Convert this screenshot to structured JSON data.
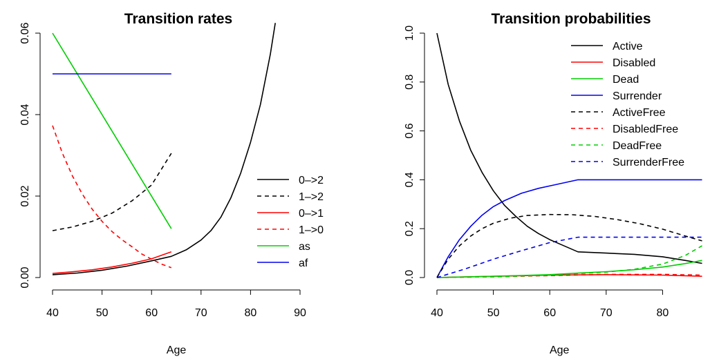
{
  "chart_data": [
    {
      "type": "line",
      "title": "Transition rates",
      "xlabel": "Age",
      "ylabel": "",
      "xlim": [
        40,
        90
      ],
      "ylim": [
        0,
        0.06
      ],
      "x_ticks": [
        40,
        50,
        60,
        70,
        80,
        90
      ],
      "y_ticks": [
        0.0,
        0.02,
        0.04,
        0.06
      ],
      "y_tick_labels": [
        "0.00",
        "0.02",
        "0.04",
        "0.06"
      ],
      "legend_position": "bottom-right",
      "series": [
        {
          "name": "0–>2",
          "color": "#000000",
          "dash": "solid",
          "points": [
            [
              40,
              0.0007
            ],
            [
              45,
              0.0011
            ],
            [
              50,
              0.0018
            ],
            [
              55,
              0.0028
            ],
            [
              60,
              0.0041
            ],
            [
              64,
              0.0052
            ],
            [
              67,
              0.0068
            ],
            [
              70,
              0.0092
            ],
            [
              72,
              0.0115
            ],
            [
              74,
              0.0148
            ],
            [
              76,
              0.0195
            ],
            [
              78,
              0.0256
            ],
            [
              80,
              0.0332
            ],
            [
              82,
              0.0425
            ],
            [
              84,
              0.0548
            ],
            [
              85,
              0.0625
            ]
          ]
        },
        {
          "name": "1–>2",
          "color": "#000000",
          "dash": "dashed",
          "points": [
            [
              40,
              0.0115
            ],
            [
              44,
              0.0124
            ],
            [
              48,
              0.0138
            ],
            [
              52,
              0.0158
            ],
            [
              56,
              0.0188
            ],
            [
              60,
              0.0227
            ],
            [
              64,
              0.0305
            ]
          ]
        },
        {
          "name": "0–>1",
          "color": "#ff0000",
          "dash": "solid",
          "points": [
            [
              40,
              0.001
            ],
            [
              44,
              0.0014
            ],
            [
              48,
              0.0019
            ],
            [
              52,
              0.0026
            ],
            [
              56,
              0.0035
            ],
            [
              60,
              0.0046
            ],
            [
              64,
              0.0063
            ]
          ]
        },
        {
          "name": "1–>0",
          "color": "#ff0000",
          "dash": "dashed",
          "points": [
            [
              40,
              0.0373
            ],
            [
              42,
              0.0305
            ],
            [
              44,
              0.025
            ],
            [
              46,
              0.0205
            ],
            [
              48,
              0.0168
            ],
            [
              50,
              0.0138
            ],
            [
              52,
              0.0113
            ],
            [
              54,
              0.0093
            ],
            [
              56,
              0.0076
            ],
            [
              58,
              0.0058
            ],
            [
              60,
              0.0045
            ],
            [
              62,
              0.0033
            ],
            [
              64,
              0.0024
            ]
          ]
        },
        {
          "name": "as",
          "color": "#00cd00",
          "dash": "solid",
          "points": [
            [
              40,
              0.06
            ],
            [
              64,
              0.012
            ]
          ]
        },
        {
          "name": "af",
          "color": "#0000ee",
          "dash": "solid",
          "points": [
            [
              40,
              0.05
            ],
            [
              64,
              0.05
            ]
          ]
        }
      ]
    },
    {
      "type": "line",
      "title": "Transition probabilities",
      "xlabel": "Age",
      "ylabel": "",
      "xlim": [
        40,
        90
      ],
      "ylim": [
        0,
        1.0
      ],
      "x_ticks": [
        40,
        50,
        60,
        70,
        80
      ],
      "y_ticks": [
        0.0,
        0.2,
        0.4,
        0.6,
        0.8,
        1.0
      ],
      "y_tick_labels": [
        "0.0",
        "0.2",
        "0.4",
        "0.6",
        "0.8",
        "1.0"
      ],
      "legend_position": "top-right",
      "series": [
        {
          "name": "Active",
          "color": "#000000",
          "dash": "solid",
          "points": [
            [
              40,
              1.0
            ],
            [
              42,
              0.79
            ],
            [
              44,
              0.64
            ],
            [
              46,
              0.52
            ],
            [
              48,
              0.43
            ],
            [
              50,
              0.355
            ],
            [
              52,
              0.295
            ],
            [
              54,
              0.25
            ],
            [
              56,
              0.21
            ],
            [
              58,
              0.18
            ],
            [
              60,
              0.155
            ],
            [
              62,
              0.135
            ],
            [
              65,
              0.105
            ],
            [
              70,
              0.1
            ],
            [
              75,
              0.095
            ],
            [
              80,
              0.085
            ],
            [
              84,
              0.07
            ],
            [
              87,
              0.058
            ]
          ]
        },
        {
          "name": "Disabled",
          "color": "#ff0000",
          "dash": "solid",
          "points": [
            [
              40,
              0.0
            ],
            [
              50,
              0.005
            ],
            [
              60,
              0.01
            ],
            [
              70,
              0.012
            ],
            [
              80,
              0.01
            ],
            [
              87,
              0.005
            ]
          ]
        },
        {
          "name": "Dead",
          "color": "#00cd00",
          "dash": "solid",
          "points": [
            [
              40,
              0.0
            ],
            [
              50,
              0.005
            ],
            [
              60,
              0.012
            ],
            [
              65,
              0.018
            ],
            [
              70,
              0.024
            ],
            [
              75,
              0.032
            ],
            [
              80,
              0.043
            ],
            [
              84,
              0.057
            ],
            [
              87,
              0.07
            ]
          ]
        },
        {
          "name": "Surrender",
          "color": "#0000ee",
          "dash": "solid",
          "points": [
            [
              40,
              0.0
            ],
            [
              42,
              0.085
            ],
            [
              44,
              0.155
            ],
            [
              46,
              0.21
            ],
            [
              48,
              0.255
            ],
            [
              50,
              0.29
            ],
            [
              52,
              0.315
            ],
            [
              55,
              0.345
            ],
            [
              58,
              0.365
            ],
            [
              61,
              0.38
            ],
            [
              65,
              0.4
            ],
            [
              70,
              0.4
            ],
            [
              75,
              0.4
            ],
            [
              80,
              0.4
            ],
            [
              87,
              0.4
            ]
          ]
        },
        {
          "name": "ActiveFree",
          "color": "#000000",
          "dash": "dashed",
          "points": [
            [
              40,
              0.0
            ],
            [
              42,
              0.075
            ],
            [
              44,
              0.13
            ],
            [
              46,
              0.17
            ],
            [
              48,
              0.2
            ],
            [
              50,
              0.222
            ],
            [
              53,
              0.243
            ],
            [
              56,
              0.254
            ],
            [
              60,
              0.258
            ],
            [
              64,
              0.257
            ],
            [
              68,
              0.25
            ],
            [
              72,
              0.237
            ],
            [
              76,
              0.22
            ],
            [
              80,
              0.198
            ],
            [
              84,
              0.17
            ],
            [
              87,
              0.15
            ]
          ]
        },
        {
          "name": "DisabledFree",
          "color": "#ff0000",
          "dash": "dashed",
          "points": [
            [
              40,
              0.0
            ],
            [
              50,
              0.003
            ],
            [
              60,
              0.008
            ],
            [
              70,
              0.013
            ],
            [
              80,
              0.013
            ],
            [
              87,
              0.01
            ]
          ]
        },
        {
          "name": "DeadFree",
          "color": "#00cd00",
          "dash": "dashed",
          "points": [
            [
              40,
              0.0
            ],
            [
              50,
              0.003
            ],
            [
              60,
              0.01
            ],
            [
              70,
              0.022
            ],
            [
              75,
              0.034
            ],
            [
              80,
              0.055
            ],
            [
              84,
              0.09
            ],
            [
              87,
              0.13
            ]
          ]
        },
        {
          "name": "SurrenderFree",
          "color": "#0000ee",
          "dash": "dashed",
          "points": [
            [
              40,
              0.0
            ],
            [
              45,
              0.035
            ],
            [
              50,
              0.075
            ],
            [
              55,
              0.11
            ],
            [
              60,
              0.143
            ],
            [
              65,
              0.165
            ],
            [
              70,
              0.165
            ],
            [
              75,
              0.165
            ],
            [
              80,
              0.165
            ],
            [
              87,
              0.165
            ]
          ]
        }
      ]
    }
  ]
}
